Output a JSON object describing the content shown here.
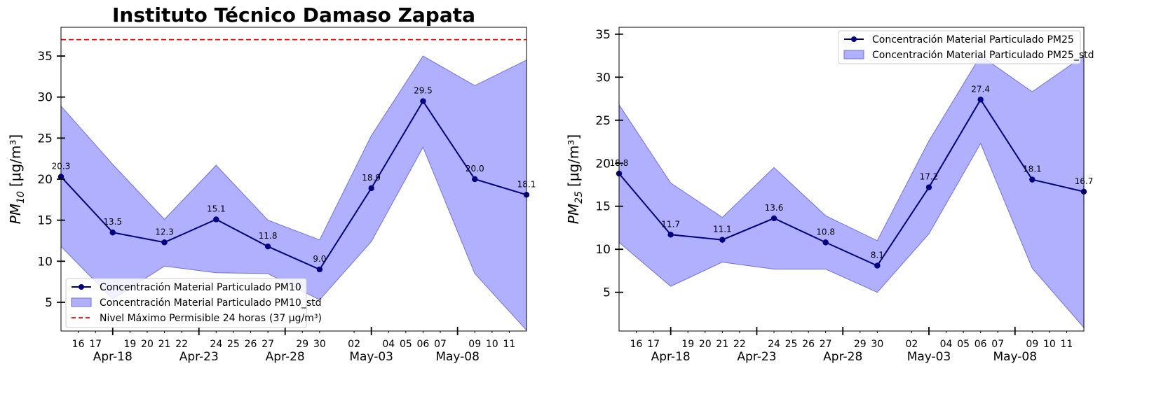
{
  "colors": {
    "line": "#000080",
    "band_fill": "#b0b0ff",
    "band_edge": "#7070e0",
    "limit": "#ff0000"
  },
  "x_axis": {
    "minor_ticks": [
      {
        "date": "2024-04-16",
        "label": "16"
      },
      {
        "date": "2024-04-17",
        "label": "17"
      },
      {
        "date": "2024-04-19",
        "label": "19"
      },
      {
        "date": "2024-04-20",
        "label": "20"
      },
      {
        "date": "2024-04-21",
        "label": "21"
      },
      {
        "date": "2024-04-22",
        "label": "22"
      },
      {
        "date": "2024-04-24",
        "label": "24"
      },
      {
        "date": "2024-04-25",
        "label": "25"
      },
      {
        "date": "2024-04-26",
        "label": "26"
      },
      {
        "date": "2024-04-27",
        "label": "27"
      },
      {
        "date": "2024-04-29",
        "label": "29"
      },
      {
        "date": "2024-04-30",
        "label": "30"
      },
      {
        "date": "2024-05-02",
        "label": "02"
      },
      {
        "date": "2024-05-04",
        "label": "04"
      },
      {
        "date": "2024-05-05",
        "label": "05"
      },
      {
        "date": "2024-05-06",
        "label": "06"
      },
      {
        "date": "2024-05-07",
        "label": "07"
      },
      {
        "date": "2024-05-09",
        "label": "09"
      },
      {
        "date": "2024-05-10",
        "label": "10"
      },
      {
        "date": "2024-05-11",
        "label": "11"
      }
    ],
    "major_ticks": [
      {
        "date": "2024-04-18",
        "label": "Apr-18"
      },
      {
        "date": "2024-04-23",
        "label": "Apr-23"
      },
      {
        "date": "2024-04-28",
        "label": "Apr-28"
      },
      {
        "date": "2024-05-03",
        "label": "May-03"
      },
      {
        "date": "2024-05-08",
        "label": "May-08"
      }
    ]
  },
  "chart_data": [
    {
      "type": "line",
      "title": "Instituto Técnico Damaso Zapata",
      "ylabel_main": "PM",
      "ylabel_sub": "10",
      "ylabel_unit": "[μg/m³]",
      "xlim": [
        "2024-04-15",
        "2024-05-12"
      ],
      "ylim": [
        1.5,
        38.5
      ],
      "yticks": [
        5,
        10,
        15,
        20,
        25,
        30,
        35
      ],
      "legend_position": "lower-left",
      "series": [
        {
          "name": "Concentración Material Particulado PM10",
          "x": [
            "2024-04-15",
            "2024-04-18",
            "2024-04-21",
            "2024-04-24",
            "2024-04-27",
            "2024-04-30",
            "2024-05-03",
            "2024-05-06",
            "2024-05-09",
            "2024-05-12"
          ],
          "y": [
            20.3,
            13.5,
            12.3,
            15.1,
            11.8,
            9.0,
            18.9,
            29.5,
            20.0,
            18.1
          ],
          "labels": [
            "20.3",
            "13.5",
            "12.3",
            "15.1",
            "11.8",
            "9.0",
            "18.9",
            "29.5",
            "20.0",
            "18.1"
          ]
        }
      ],
      "band": {
        "name": "Concentración Material Particulado PM10_std",
        "upper": [
          28.9,
          21.8,
          15.1,
          21.7,
          15.0,
          12.6,
          25.3,
          35.0,
          31.4,
          34.5
        ],
        "lower": [
          11.8,
          5.4,
          9.4,
          8.6,
          8.5,
          5.3,
          12.4,
          23.9,
          8.5,
          1.6
        ]
      },
      "hline": {
        "name": "Nivel Máximo Permisible 24 horas",
        "legend_value": "(37 μg/m³)",
        "value": 37
      }
    },
    {
      "type": "line",
      "title": "",
      "ylabel_main": "PM",
      "ylabel_sub": "25",
      "ylabel_unit": "[μg/m³]",
      "xlim": [
        "2024-04-15",
        "2024-05-12"
      ],
      "ylim": [
        0.5,
        35.8
      ],
      "yticks": [
        5,
        10,
        15,
        20,
        25,
        30,
        35
      ],
      "legend_position": "upper-right",
      "series": [
        {
          "name": "Concentración Material Particulado PM25",
          "x": [
            "2024-04-15",
            "2024-04-18",
            "2024-04-21",
            "2024-04-24",
            "2024-04-27",
            "2024-04-30",
            "2024-05-03",
            "2024-05-06",
            "2024-05-09",
            "2024-05-12"
          ],
          "y": [
            18.8,
            11.7,
            11.1,
            13.6,
            10.8,
            8.1,
            17.2,
            27.4,
            18.1,
            16.7
          ],
          "labels": [
            "18.8",
            "11.7",
            "11.1",
            "13.6",
            "10.8",
            "8.1",
            "17.2",
            "27.4",
            "18.1",
            "16.7"
          ]
        }
      ],
      "band": {
        "name": "Concentración Material Particulado PM25_std",
        "upper": [
          26.8,
          17.7,
          13.7,
          19.5,
          13.9,
          11.0,
          22.6,
          32.5,
          28.3,
          32.5
        ],
        "lower": [
          10.8,
          5.7,
          8.5,
          7.7,
          7.7,
          5.0,
          11.8,
          22.3,
          7.8,
          0.9
        ]
      }
    }
  ]
}
